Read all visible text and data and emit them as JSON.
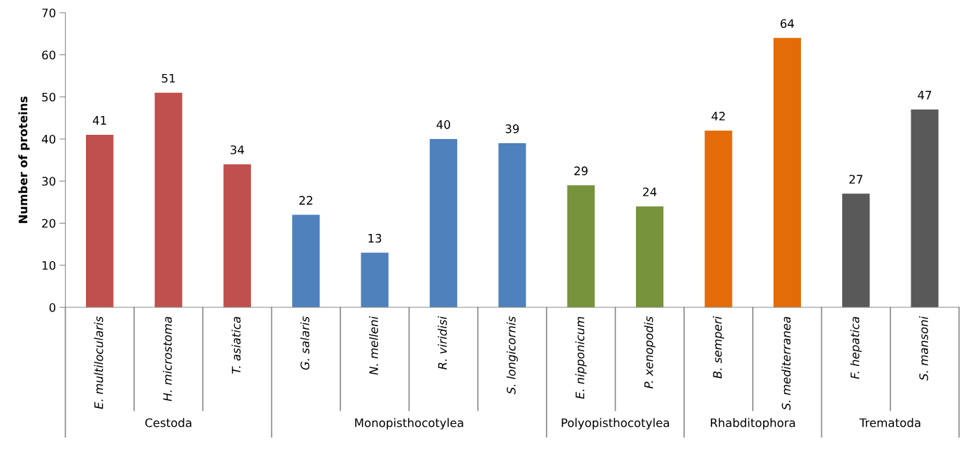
{
  "chart_data": {
    "type": "bar",
    "ylabel": "Number of proteins",
    "categories": [
      "E. multilocularis",
      "H. microstoma",
      "T. asiatica",
      "G. salaris",
      "N. melleni",
      "R. viridisi",
      "S. longicornis",
      "E. nipponicum",
      "P. xenopodis",
      "B. semperi",
      "S. mediterranea",
      "F. hepatica",
      "S. mansoni"
    ],
    "values": [
      41,
      51,
      34,
      22,
      13,
      40,
      39,
      29,
      24,
      42,
      64,
      27,
      47
    ],
    "colors": [
      "#c0504d",
      "#c0504d",
      "#c0504d",
      "#4f81bd",
      "#4f81bd",
      "#4f81bd",
      "#4f81bd",
      "#77933c",
      "#77933c",
      "#e36c09",
      "#e36c09",
      "#595959",
      "#595959"
    ],
    "ylim": [
      0,
      70
    ],
    "yticks": [
      0,
      10,
      20,
      30,
      40,
      50,
      60,
      70
    ],
    "data_labels": true,
    "grid": false,
    "legend": false,
    "annotations": [
      "Cestoda",
      "Monopisthocotylea",
      "Polyopisthocotylea",
      "Rhabditophora",
      "Trematoda"
    ]
  }
}
